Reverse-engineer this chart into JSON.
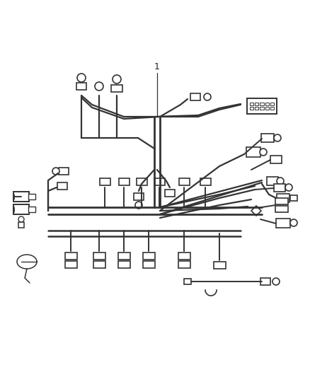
{
  "bg_color": "#ffffff",
  "line_color": "#333333",
  "connector_color": "#333333",
  "label_1": "1",
  "fig_width": 4.38,
  "fig_height": 5.33,
  "dpi": 100
}
